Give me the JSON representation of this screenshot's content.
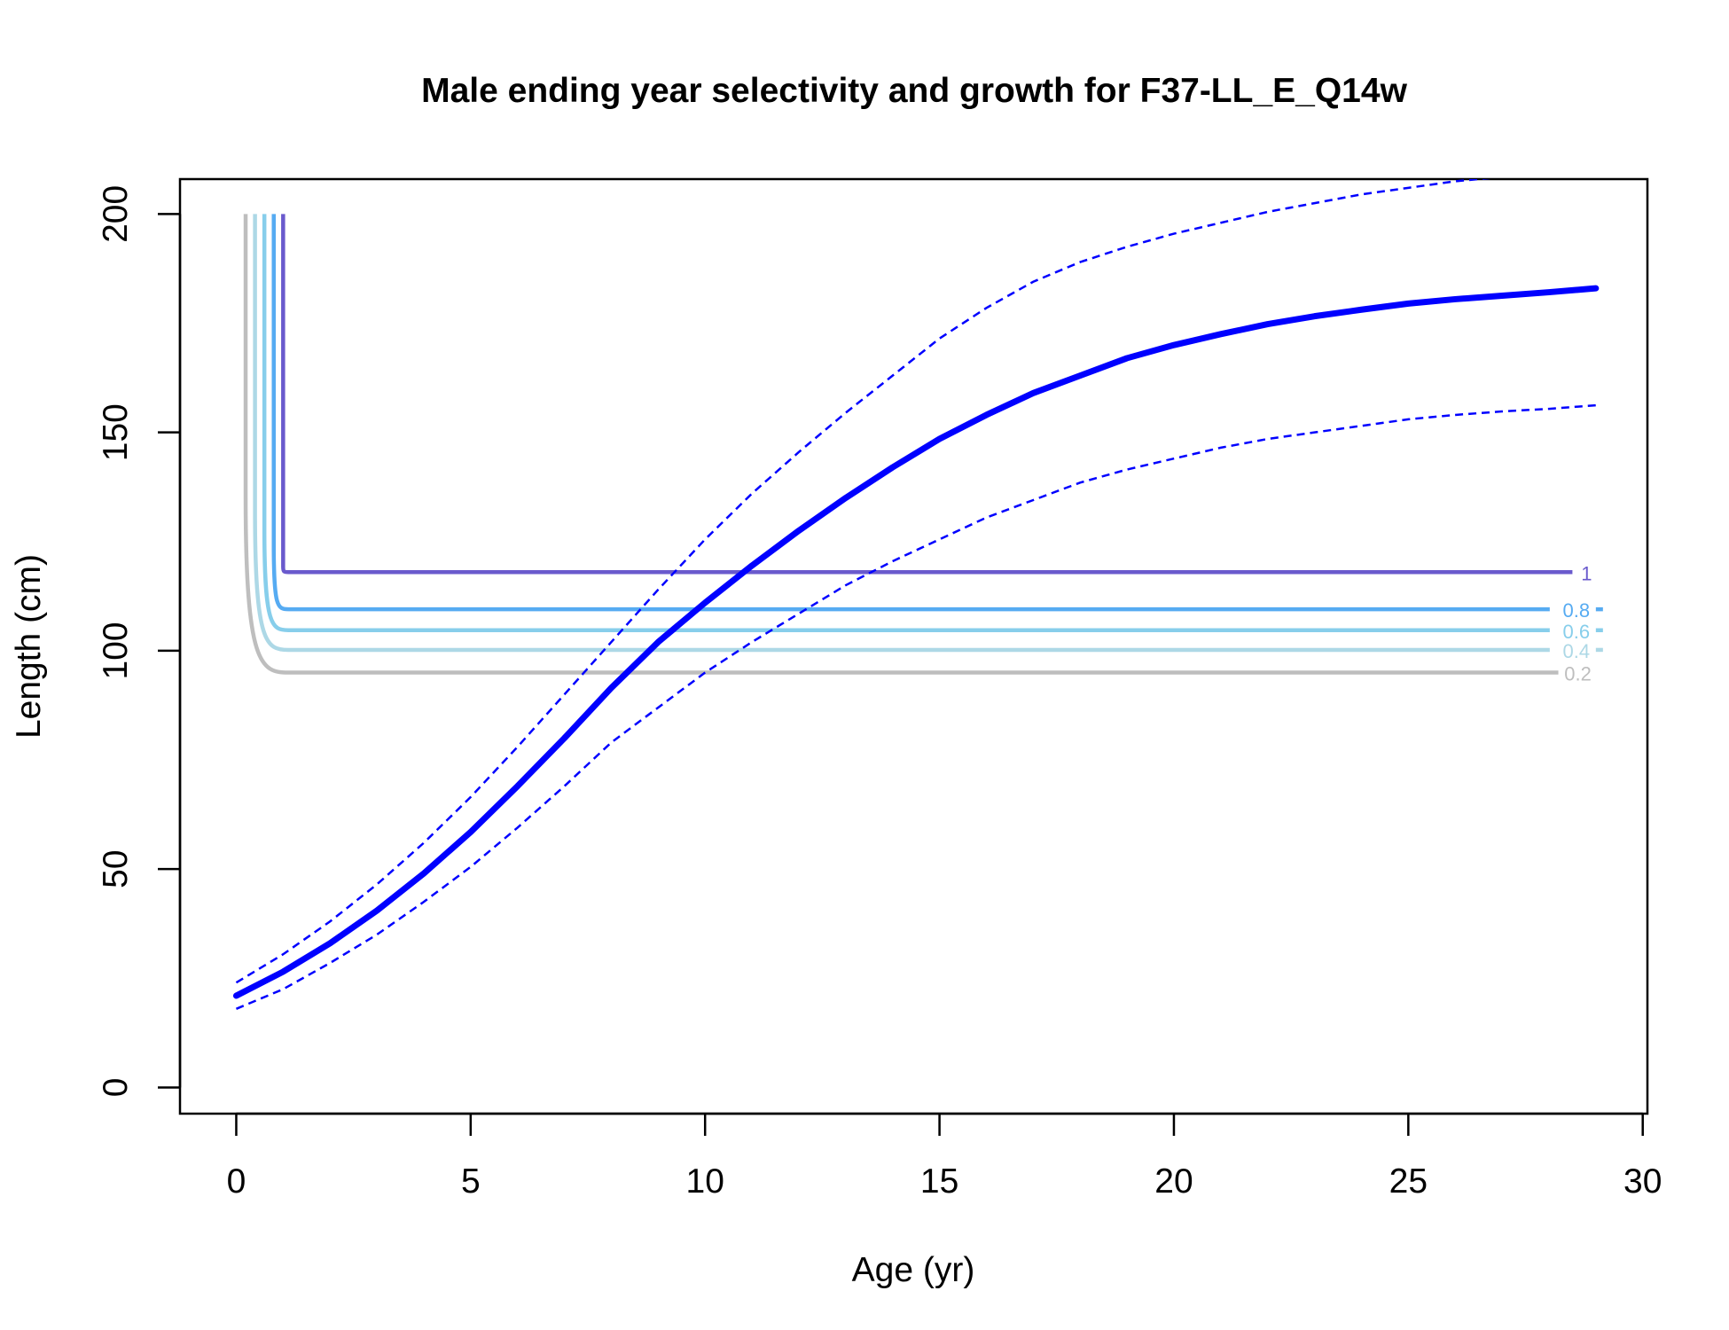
{
  "chart_data": {
    "type": "line",
    "title": "Male ending year selectivity and growth for F37-LL_E_Q14w",
    "xlabel": "Age (yr)",
    "ylabel": "Length (cm)",
    "xlim": [
      -1.2,
      30.1
    ],
    "ylim": [
      -6,
      208
    ],
    "x_ticks": [
      0,
      5,
      10,
      15,
      20,
      25,
      30
    ],
    "y_ticks": [
      0,
      50,
      100,
      150,
      200
    ],
    "grid": false,
    "growth": {
      "color": "#0000ff",
      "x": [
        0,
        1,
        2,
        3,
        4,
        5,
        6,
        7,
        8,
        9,
        10,
        11,
        12,
        13,
        14,
        15,
        16,
        17,
        18,
        19,
        20,
        21,
        22,
        23,
        24,
        25,
        26,
        27,
        28,
        29
      ],
      "mean": [
        21,
        26.5,
        33,
        40.5,
        49,
        58.5,
        69,
        80,
        91.5,
        102,
        111,
        119.5,
        127.5,
        135,
        142,
        148.5,
        154,
        159,
        163,
        167,
        170,
        172.5,
        174.8,
        176.6,
        178.1,
        179.5,
        180.5,
        181.3,
        182.1,
        183
      ],
      "upper": [
        24,
        30.5,
        38,
        46.5,
        56,
        66.5,
        78,
        90,
        102,
        114,
        125.5,
        136,
        145.5,
        154.5,
        163,
        171.5,
        178.5,
        184.5,
        189,
        192.5,
        195.5,
        198,
        200.5,
        202.5,
        204.5,
        206,
        207.5,
        208.5,
        208.8,
        209
      ],
      "lower": [
        18,
        22.5,
        28.5,
        35,
        42.5,
        50.5,
        59.5,
        69,
        79,
        87,
        95,
        102,
        108.5,
        115,
        120.5,
        125.5,
        130.5,
        134.5,
        138.5,
        141.5,
        144,
        146.5,
        148.5,
        150,
        151.5,
        153,
        154,
        154.8,
        155.4,
        156.2
      ]
    },
    "selectivity_contours": [
      {
        "level": "0.2",
        "color": "#bebebe",
        "corner_age": 1.0,
        "start_age": 0.2,
        "length": 95,
        "end_age": 28.2
      },
      {
        "level": "0.4",
        "color": "#add8e6",
        "corner_age": 1.0,
        "start_age": 0.4,
        "length": 100.2,
        "end_age": 29
      },
      {
        "level": "0.6",
        "color": "#87ceeb",
        "corner_age": 1.0,
        "start_age": 0.6,
        "length": 104.7,
        "end_age": 29
      },
      {
        "level": "0.8",
        "color": "#56abf2",
        "corner_age": 1.0,
        "start_age": 0.8,
        "length": 109.5,
        "end_age": 29
      },
      {
        "level": "1",
        "color": "#6a5acd",
        "corner_age": 1.0,
        "start_age": 1.0,
        "length": 118,
        "end_age": 28.5
      }
    ],
    "contour_top_length": 200
  }
}
